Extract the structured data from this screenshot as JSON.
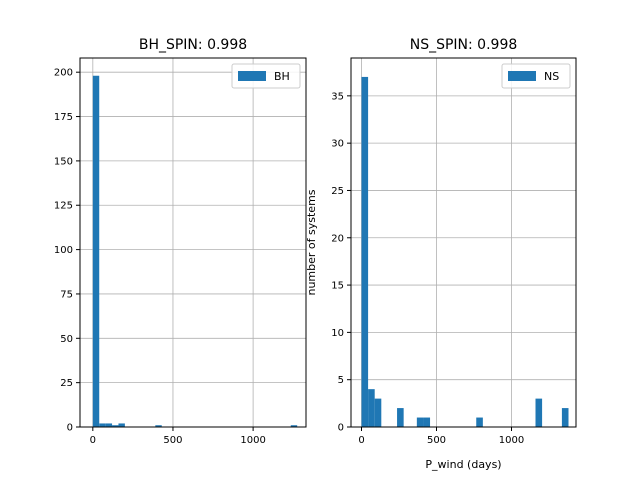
{
  "chart_data": [
    {
      "type": "bar",
      "title": "BH_SPIN: 0.998",
      "xlabel": "",
      "ylabel": "",
      "xlim": [
        -80,
        1330
      ],
      "ylim": [
        0,
        208
      ],
      "xticks": [
        0,
        500,
        1000
      ],
      "yticks": [
        0,
        25,
        50,
        75,
        100,
        125,
        150,
        175,
        200
      ],
      "grid": true,
      "legend": {
        "placement": "top-right",
        "entries": [
          {
            "label": "BH",
            "color": "#1f77b4"
          }
        ]
      },
      "bin_width": 40,
      "series": [
        {
          "name": "BH",
          "color": "#1f77b4",
          "bins": [
            {
              "x0": 0,
              "x1": 40,
              "count": 198
            },
            {
              "x0": 40,
              "x1": 80,
              "count": 2
            },
            {
              "x0": 80,
              "x1": 120,
              "count": 2
            },
            {
              "x0": 120,
              "x1": 160,
              "count": 1
            },
            {
              "x0": 160,
              "x1": 200,
              "count": 2
            },
            {
              "x0": 390,
              "x1": 430,
              "count": 1
            },
            {
              "x0": 1235,
              "x1": 1275,
              "count": 1
            }
          ]
        }
      ]
    },
    {
      "type": "bar",
      "title": "NS_SPIN: 0.998",
      "xlabel": "P_wind (days)",
      "ylabel": "number of systems",
      "xlim": [
        -70,
        1430
      ],
      "ylim": [
        0,
        39
      ],
      "xticks": [
        0,
        500,
        1000
      ],
      "yticks": [
        0,
        5,
        10,
        15,
        20,
        25,
        30,
        35
      ],
      "grid": true,
      "legend": {
        "placement": "top-right",
        "entries": [
          {
            "label": "NS",
            "color": "#1f77b4"
          }
        ]
      },
      "bin_width": 44,
      "series": [
        {
          "name": "NS",
          "color": "#1f77b4",
          "bins": [
            {
              "x0": 0,
              "x1": 44,
              "count": 37
            },
            {
              "x0": 44,
              "x1": 88,
              "count": 4
            },
            {
              "x0": 88,
              "x1": 132,
              "count": 3
            },
            {
              "x0": 237,
              "x1": 281,
              "count": 2
            },
            {
              "x0": 369,
              "x1": 413,
              "count": 1
            },
            {
              "x0": 413,
              "x1": 457,
              "count": 1
            },
            {
              "x0": 765,
              "x1": 809,
              "count": 1
            },
            {
              "x0": 1160,
              "x1": 1204,
              "count": 3
            },
            {
              "x0": 1336,
              "x1": 1380,
              "count": 2
            }
          ]
        }
      ]
    }
  ]
}
